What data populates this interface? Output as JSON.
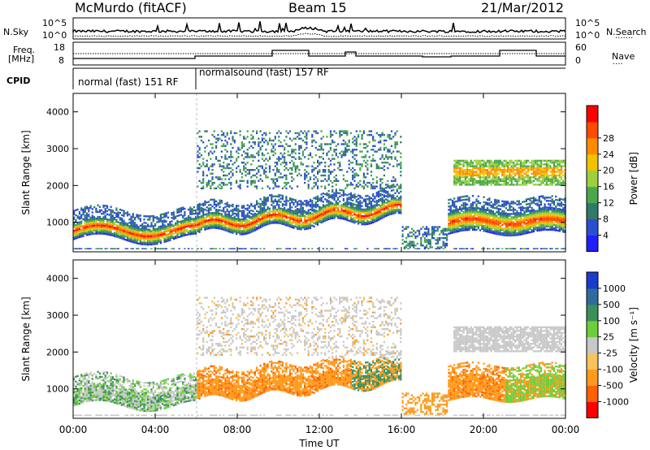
{
  "header": {
    "station": "McMurdo (fitACF)",
    "beam": "Beam 15",
    "date": "21/Mar/2012"
  },
  "top_panels": {
    "nsky_label": "N.Sky",
    "nsearch_label": "N.Search",
    "nsky_ticks": [
      "10^5",
      "10^0"
    ],
    "nsearch_ticks": [
      "10^5",
      "10^0"
    ],
    "freq_label": [
      "Freq.",
      "[MHz]"
    ],
    "freq_ticks": [
      "18",
      "8"
    ],
    "nave_label": "Nave",
    "nave_ticks": [
      "60",
      "0"
    ],
    "cpid_label": "CPID",
    "cpid_segments": [
      "normal (fast) 151 RF",
      "normalsound (fast) 157 RF"
    ]
  },
  "chart_data": [
    {
      "type": "heatmap",
      "name": "power-panel",
      "ylabel": "Slant Range [km]",
      "yticks": [
        "1000",
        "2000",
        "3000",
        "4000"
      ],
      "ylim": [
        200,
        4500
      ],
      "xlim_hours": [
        0,
        24
      ],
      "colorbar": {
        "label": "Power [dB]",
        "ticks": [
          "4",
          "8",
          "12",
          "16",
          "20",
          "24",
          "28"
        ],
        "colors": [
          "#1f1fff",
          "#2c4fd0",
          "#2f7a6a",
          "#49a84c",
          "#9bd13f",
          "#f0c300",
          "#ff8a00",
          "#ff4a00",
          "#ff0000"
        ]
      }
    },
    {
      "type": "heatmap",
      "name": "velocity-panel",
      "ylabel": "Slant Range [km]",
      "yticks": [
        "1000",
        "2000",
        "3000",
        "4000"
      ],
      "ylim": [
        200,
        4500
      ],
      "xlim_hours": [
        0,
        24
      ],
      "colorbar": {
        "label": "Velocity [m s⁻¹]",
        "ticks": [
          "1000",
          "500",
          "100",
          "25",
          "-25",
          "-100",
          "-500",
          "-1000"
        ],
        "colors": [
          "#1a3ad0",
          "#2f6b9a",
          "#3b8f5a",
          "#6ccf3a",
          "#c8c8c8",
          "#f7c35a",
          "#ff9a1a",
          "#ff6000",
          "#ff0000"
        ]
      }
    }
  ],
  "xaxis": {
    "label": "Time UT",
    "ticks": [
      "00:00",
      "04:00",
      "08:00",
      "12:00",
      "16:00",
      "20:00",
      "00:00"
    ]
  }
}
